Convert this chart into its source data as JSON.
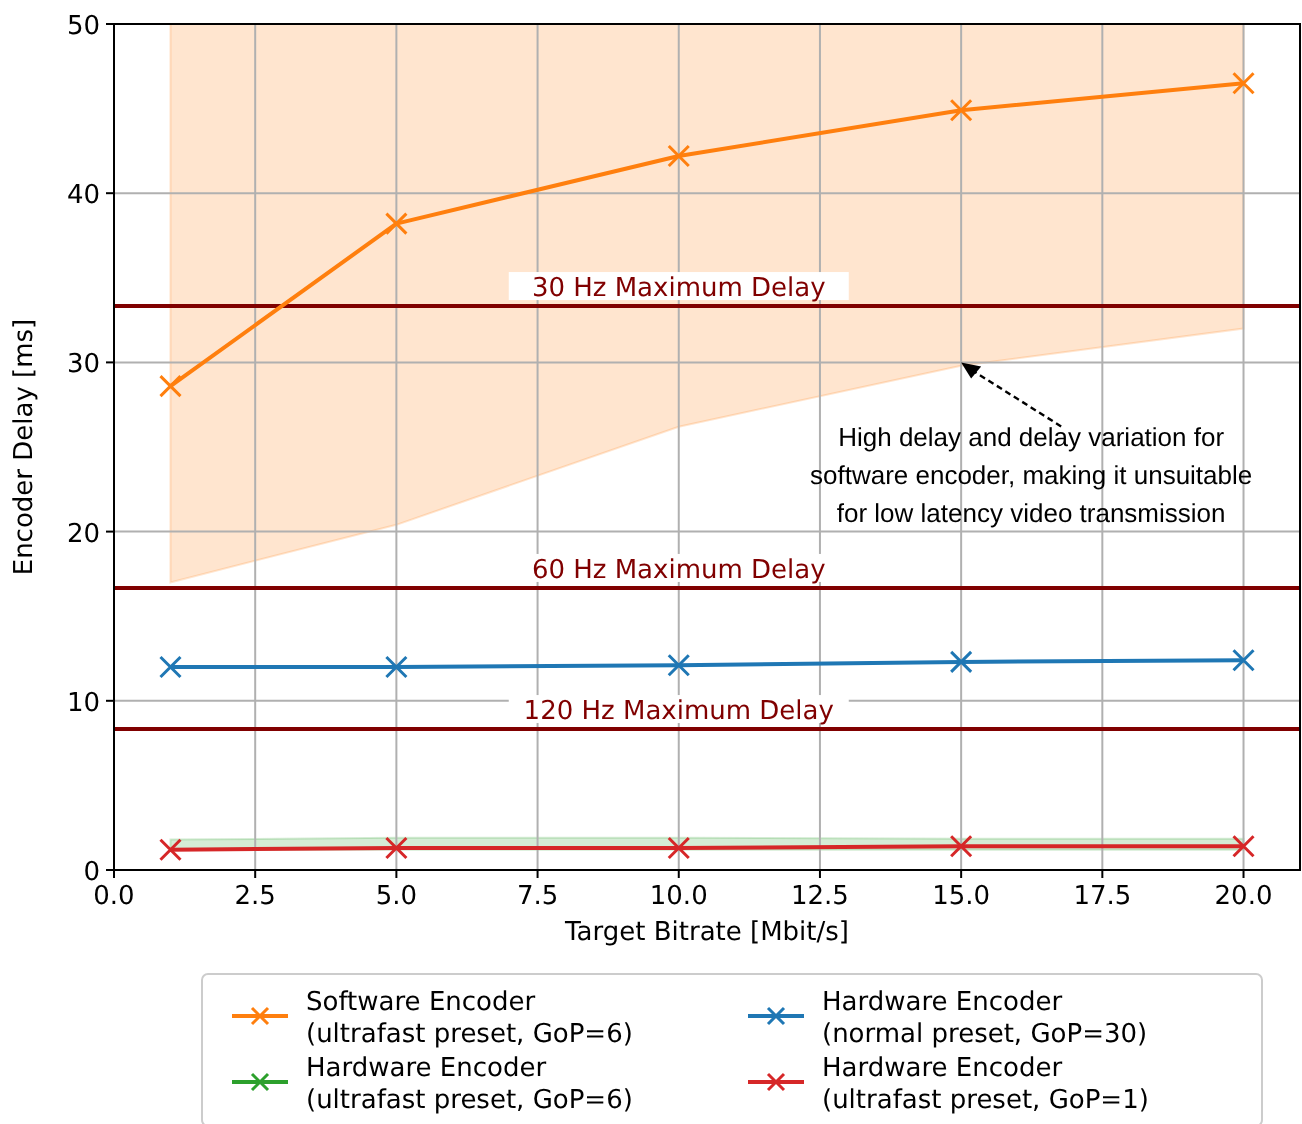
{
  "chart_data": {
    "type": "line",
    "xlabel": "Target Bitrate [Mbit/s]",
    "ylabel": "Encoder Delay [ms]",
    "x": [
      1,
      5,
      10,
      15,
      20
    ],
    "series": [
      {
        "name": "Software Encoder\n(ultrafast preset, GoP=6)",
        "color": "#ff7f0e",
        "values": [
          28.6,
          38.2,
          42.2,
          44.9,
          46.5
        ],
        "lower": [
          17,
          20.4,
          26.2,
          29.8,
          32
        ],
        "upper": [
          50,
          50,
          50,
          50,
          50
        ]
      },
      {
        "name": "Hardware Encoder\n(ultrafast preset, GoP=6)",
        "color": "#2ca02c",
        "values": [
          null,
          null,
          null,
          null,
          null
        ],
        "lower": [
          1.2,
          1.2,
          1.2,
          1.2,
          1.2
        ],
        "upper": [
          1.8,
          1.9,
          1.9,
          1.85,
          1.85
        ]
      },
      {
        "name": "Hardware Encoder\n(normal preset, GoP=30)",
        "color": "#1f77b4",
        "values": [
          12.0,
          12.0,
          12.1,
          12.3,
          12.4
        ]
      },
      {
        "name": "Hardware Encoder\n(ultrafast preset, GoP=1)",
        "color": "#d62728",
        "values": [
          1.2,
          1.3,
          1.3,
          1.4,
          1.4
        ]
      }
    ],
    "xlim": [
      0,
      21
    ],
    "xticks": [
      {
        "value": 0,
        "label": "0.0"
      },
      {
        "value": 2.5,
        "label": "2.5"
      },
      {
        "value": 5,
        "label": "5.0"
      },
      {
        "value": 7.5,
        "label": "7.5"
      },
      {
        "value": 10,
        "label": "10.0"
      },
      {
        "value": 12.5,
        "label": "12.5"
      },
      {
        "value": 15,
        "label": "15.0"
      },
      {
        "value": 17.5,
        "label": "17.5"
      },
      {
        "value": 20,
        "label": "20.0"
      }
    ],
    "ylim": [
      0,
      50
    ],
    "yticks": [
      0,
      10,
      20,
      30,
      40,
      50
    ],
    "ref_lines": [
      {
        "axis": "y",
        "value": 33.33,
        "label": "30 Hz Maximum Delay",
        "color": "#800000"
      },
      {
        "axis": "y",
        "value": 16.67,
        "label": "60 Hz Maximum Delay",
        "color": "#800000"
      },
      {
        "axis": "y",
        "value": 8.33,
        "label": "120 Hz Maximum Delay",
        "color": "#800000"
      }
    ],
    "annotations": [
      {
        "text": "High delay and delay variation for\nsoftware encoder, making it unsuitable\nfor low latency video transmission",
        "x": 15,
        "y": 30
      }
    ],
    "grid": true,
    "legend": "bottom",
    "marker": "cross",
    "line_style": "solid"
  }
}
